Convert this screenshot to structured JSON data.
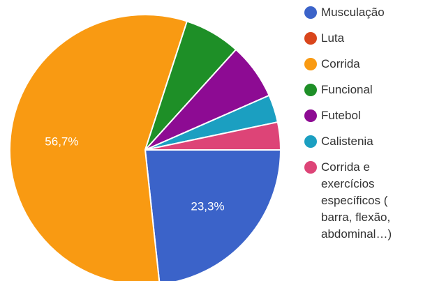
{
  "chart_data": {
    "type": "pie",
    "slices": [
      {
        "label": "Musculação",
        "value": 23.3,
        "color": "#3b63c9",
        "value_label": "23,3%"
      },
      {
        "label": "Luta",
        "value": 0,
        "color": "#d9461c",
        "value_label": ""
      },
      {
        "label": "Corrida",
        "value": 56.7,
        "color": "#f99a12",
        "value_label": "56,7%"
      },
      {
        "label": "Funcional",
        "value": 6.7,
        "color": "#1e8f27",
        "value_label": ""
      },
      {
        "label": "Futebol",
        "value": 6.7,
        "color": "#8d0b93",
        "value_label": ""
      },
      {
        "label": "Calistenia",
        "value": 3.3,
        "color": "#1b9fc1",
        "value_label": ""
      },
      {
        "label": "Corrida e exercícios específicos ( barra, flexão, abdominal…)",
        "value": 3.3,
        "color": "#dd4477",
        "value_label": ""
      }
    ],
    "legend_position": "right"
  },
  "legend_lines": [
    [
      "Musculação"
    ],
    [
      "Luta"
    ],
    [
      "Corrida"
    ],
    [
      "Funcional"
    ],
    [
      "Futebol"
    ],
    [
      "Calistenia"
    ],
    [
      "Corrida e",
      "exercícios",
      "específicos (",
      "barra, flexão,",
      "abdominal…)"
    ]
  ]
}
